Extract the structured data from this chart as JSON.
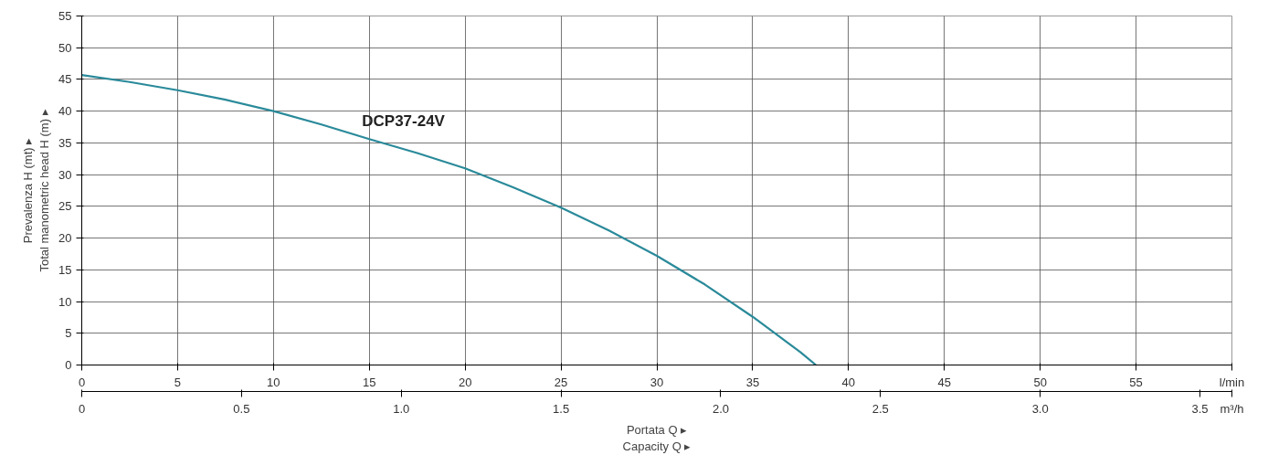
{
  "chart_data": {
    "type": "line",
    "xlabel": "Portata Q ▸\nCapacity Q ▸",
    "ylabel": "Prevalenza H (mt) ▸\nTotal manometric head H (m) ▸",
    "annotations": [
      "l/min",
      "m³/h"
    ],
    "xlim": [
      0,
      60
    ],
    "xticks": [
      0,
      5,
      10,
      15,
      20,
      25,
      30,
      35,
      40,
      45,
      50,
      55
    ],
    "x2lim": [
      0,
      3.6
    ],
    "x2ticks": [
      0,
      0.5,
      {
        "value": 1,
        "label": "1.0"
      },
      1.5,
      {
        "value": 2,
        "label": "2.0"
      },
      2.5,
      {
        "value": 3,
        "label": "3.0"
      },
      3.5
    ],
    "ylim": [
      0,
      55
    ],
    "yticks": [
      0,
      5,
      10,
      15,
      20,
      25,
      30,
      35,
      40,
      45,
      50,
      55
    ],
    "grid": true,
    "marker": "none",
    "line_style": "solid",
    "series": [
      {
        "name": "DCP37-24V",
        "color": "#2a8a9a",
        "x": [
          0,
          2.5,
          5,
          7.5,
          10,
          12.5,
          15,
          17.5,
          20,
          22.5,
          25,
          27.5,
          30,
          32.5,
          35,
          37.5,
          38.3
        ],
        "values": [
          45.7,
          44.6,
          43.3,
          41.8,
          40.0,
          37.9,
          35.6,
          33.4,
          31.0,
          28.0,
          24.8,
          21.2,
          17.2,
          12.7,
          7.6,
          2.0,
          0
        ]
      }
    ]
  }
}
